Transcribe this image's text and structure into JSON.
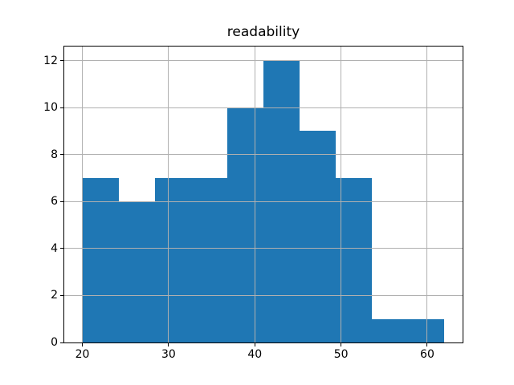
{
  "chart_data": {
    "type": "bar",
    "subtype": "histogram",
    "title": "readability",
    "bin_edges": [
      20.0,
      24.2,
      28.4,
      32.6,
      36.8,
      41.0,
      45.2,
      49.4,
      53.6,
      57.8,
      62.0
    ],
    "counts": [
      7,
      6,
      7,
      7,
      10,
      12,
      9,
      7,
      1,
      1
    ],
    "xticks": [
      20,
      30,
      40,
      50,
      60
    ],
    "yticks": [
      0,
      2,
      4,
      6,
      8,
      10,
      12
    ],
    "xlim": [
      17.9,
      64.1
    ],
    "ylim": [
      0,
      12.6
    ],
    "xlabel": "",
    "ylabel": "",
    "grid": true,
    "legend": false,
    "colors": {
      "bar": "#1f77b4",
      "grid": "#b0b0b0",
      "spine": "#000000",
      "background": "#ffffff",
      "text": "#000000"
    }
  }
}
